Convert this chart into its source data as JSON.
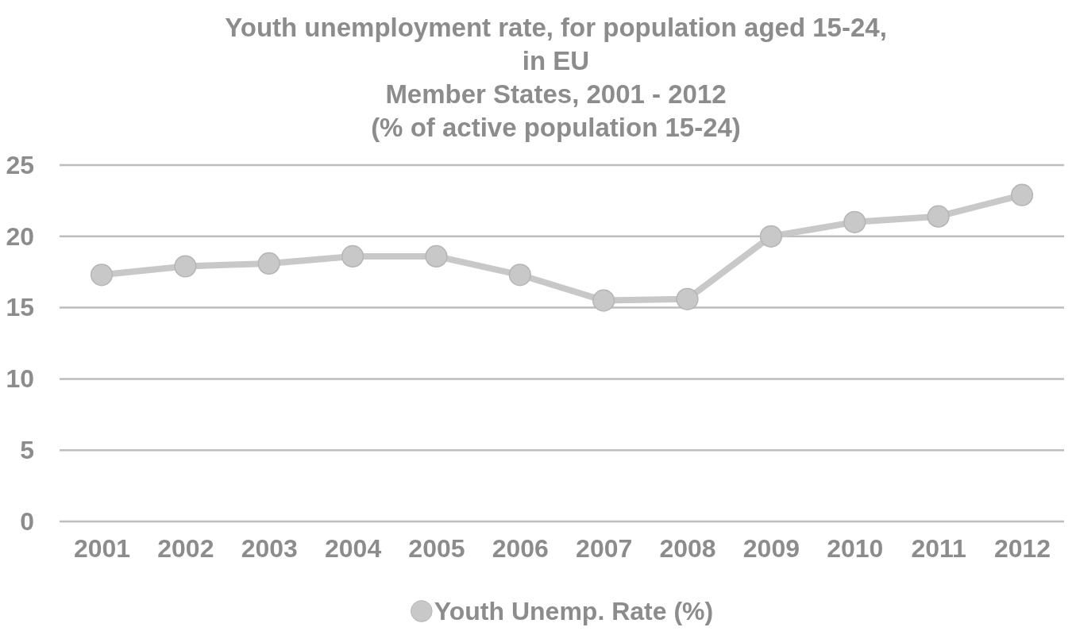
{
  "chart_data": {
    "type": "line",
    "title": "Youth unemployment rate, for population aged 15-24,\nin EU\nMember States, 2001 - 2012",
    "subtitle": "(% of active population 15-24)",
    "categories": [
      "2001",
      "2002",
      "2003",
      "2004",
      "2005",
      "2006",
      "2007",
      "2008",
      "2009",
      "2010",
      "2011",
      "2012"
    ],
    "series": [
      {
        "name": "Youth Unemp. Rate (%)",
        "color": "#c8c8c8",
        "values": [
          17.3,
          17.9,
          18.1,
          18.6,
          18.6,
          17.3,
          15.5,
          15.6,
          20.0,
          21.0,
          21.4,
          22.9
        ]
      }
    ],
    "ylim": [
      0,
      25
    ],
    "yticks": [
      0,
      5,
      10,
      15,
      20,
      25
    ],
    "grid": "y",
    "legend": "bottom",
    "marker": "circle",
    "line_style": "solid"
  }
}
